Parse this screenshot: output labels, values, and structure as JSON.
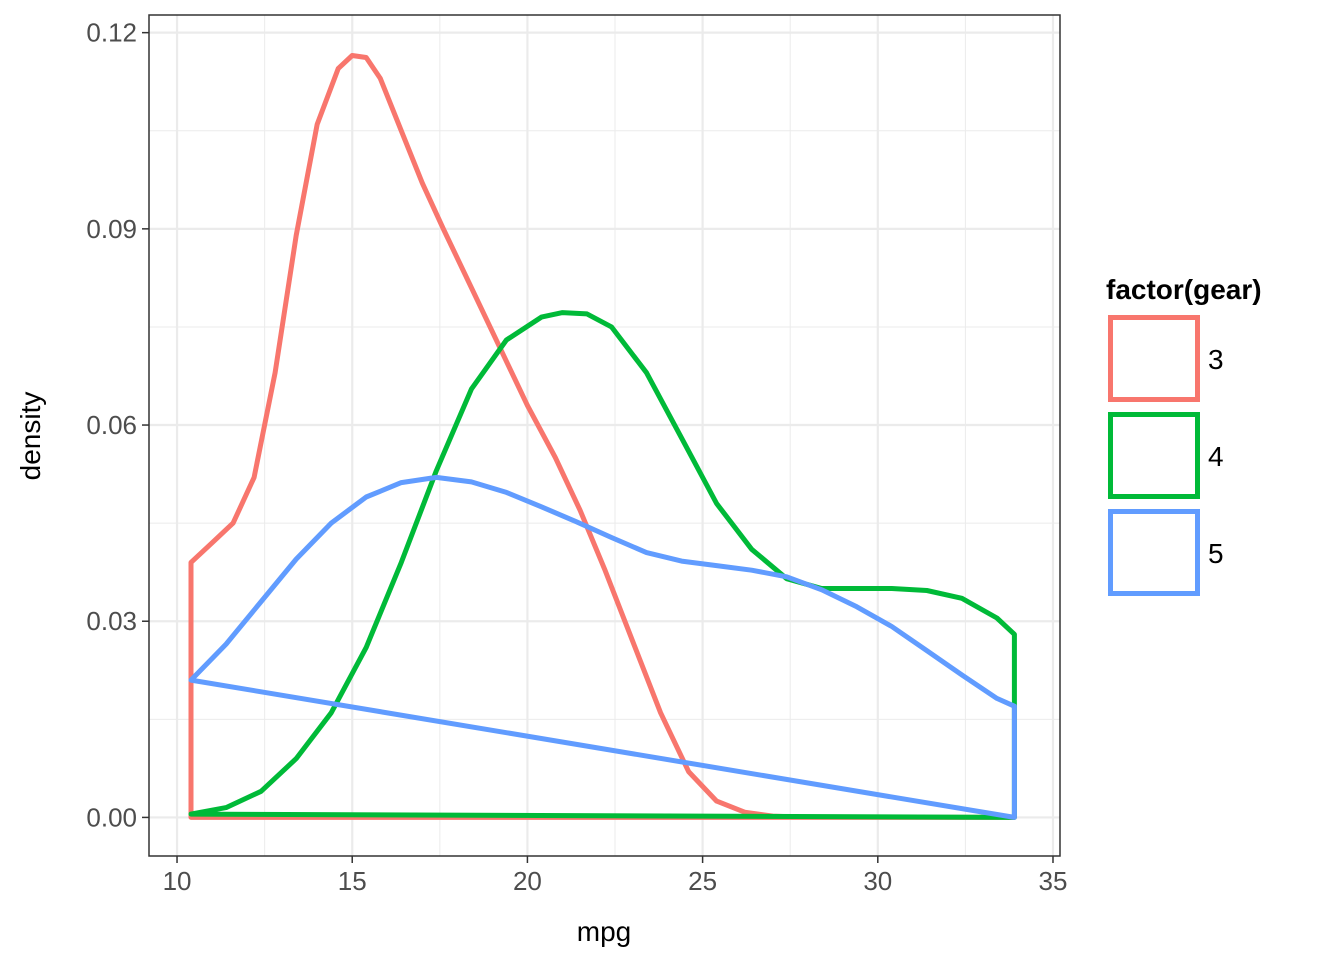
{
  "chart_data": {
    "type": "line",
    "title": "",
    "xlabel": "mpg",
    "ylabel": "density",
    "xlim": [
      9.2,
      35.2
    ],
    "ylim": [
      -0.0059,
      0.1227
    ],
    "x_ticks": [
      10,
      15,
      20,
      25,
      30,
      35
    ],
    "x_tick_labels": [
      "10",
      "15",
      "20",
      "25",
      "30",
      "35"
    ],
    "y_ticks": [
      0.0,
      0.03,
      0.06,
      0.09,
      0.12
    ],
    "y_tick_labels": [
      "0.00",
      "0.03",
      "0.06",
      "0.09",
      "0.12"
    ],
    "grid": true,
    "legend": {
      "title": "factor(gear)",
      "position": "right",
      "entries": [
        "3",
        "4",
        "5"
      ]
    },
    "series": [
      {
        "name": "3",
        "color": "#F8766D",
        "x": [
          10.4,
          10.4,
          11.0,
          11.6,
          12.2,
          12.8,
          13.4,
          14.0,
          14.6,
          15.0,
          15.4,
          15.8,
          16.4,
          17.0,
          17.6,
          18.4,
          19.2,
          20.0,
          20.8,
          21.5,
          22.2,
          23.0,
          23.8,
          24.6,
          25.4,
          26.2,
          27.0,
          28.0,
          30.0,
          32.0,
          33.9,
          33.9
        ],
        "y": [
          0.0,
          0.039,
          0.042,
          0.045,
          0.052,
          0.068,
          0.089,
          0.106,
          0.1145,
          0.1165,
          0.1162,
          0.113,
          0.105,
          0.097,
          0.09,
          0.081,
          0.072,
          0.063,
          0.055,
          0.047,
          0.038,
          0.027,
          0.016,
          0.007,
          0.0025,
          0.0008,
          0.0002,
          0.0,
          0.0,
          0.0,
          0.0,
          0.0
        ]
      },
      {
        "name": "4",
        "color": "#00BA38",
        "x": [
          10.4,
          11.4,
          12.4,
          13.4,
          14.4,
          15.4,
          16.4,
          17.4,
          18.4,
          19.4,
          20.4,
          21.0,
          21.7,
          22.4,
          23.4,
          24.4,
          25.4,
          26.4,
          27.4,
          28.4,
          29.4,
          30.4,
          31.4,
          32.4,
          33.4,
          33.9,
          33.9
        ],
        "y": [
          0.0005,
          0.0015,
          0.004,
          0.009,
          0.016,
          0.026,
          0.039,
          0.053,
          0.0655,
          0.073,
          0.0765,
          0.0772,
          0.077,
          0.075,
          0.068,
          0.058,
          0.048,
          0.041,
          0.0365,
          0.035,
          0.035,
          0.035,
          0.0347,
          0.0335,
          0.0305,
          0.028,
          0.0
        ]
      },
      {
        "name": "5",
        "color": "#619CFF",
        "x": [
          10.4,
          11.4,
          12.4,
          13.4,
          14.4,
          15.4,
          16.4,
          17.4,
          18.4,
          19.4,
          20.4,
          21.4,
          22.4,
          23.4,
          24.4,
          25.4,
          26.4,
          27.4,
          28.4,
          29.4,
          30.4,
          31.4,
          32.4,
          33.4,
          33.9,
          33.9
        ],
        "y": [
          0.021,
          0.0265,
          0.033,
          0.0395,
          0.045,
          0.049,
          0.0512,
          0.052,
          0.0513,
          0.0497,
          0.0475,
          0.0452,
          0.0428,
          0.0405,
          0.0392,
          0.0385,
          0.0378,
          0.0368,
          0.0348,
          0.0322,
          0.0292,
          0.0255,
          0.0218,
          0.0182,
          0.017,
          0.0
        ]
      }
    ]
  }
}
